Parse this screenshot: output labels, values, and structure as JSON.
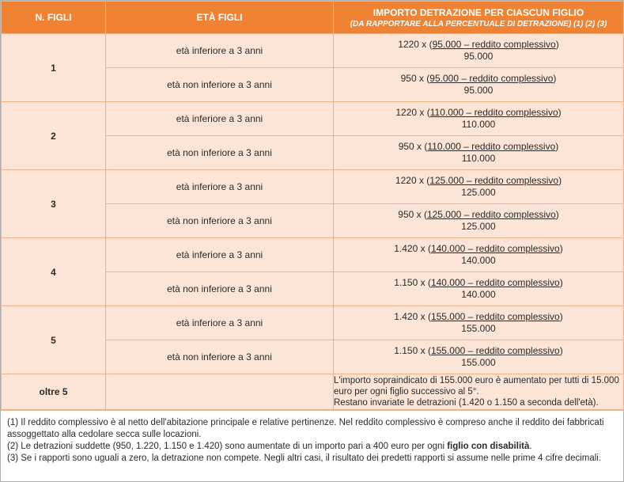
{
  "header": {
    "col1": "N. FIGLI",
    "col2": "ETÀ FIGLI",
    "col3_title": "IMPORTO DETRAZIONE PER CIASCUN FIGLIO",
    "col3_sub": "(DA RAPPORTARE ALLA PERCENTUALE DI DETRAZIONE) (1) (2) (3)"
  },
  "rows": [
    {
      "n": "1",
      "a": {
        "eta": "età inferiore a 3 anni",
        "pre": "1220 x (",
        "num": "95.000 – reddito complessivo",
        "post": ")",
        "den": "95.000"
      },
      "b": {
        "eta": "età non inferiore a 3 anni",
        "pre": "950 x (",
        "num": "95.000 – reddito complessivo",
        "post": ")",
        "den": "95.000"
      }
    },
    {
      "n": "2",
      "a": {
        "eta": "età inferiore a 3 anni",
        "pre": "1220 x (",
        "num": "110.000 – reddito complessivo",
        "post": ")",
        "den": "110.000"
      },
      "b": {
        "eta": "età non inferiore a 3 anni",
        "pre": "950 x (",
        "num": "110.000 – reddito complessivo",
        "post": ")",
        "den": "110.000"
      }
    },
    {
      "n": "3",
      "a": {
        "eta": "età inferiore a 3 anni",
        "pre": "1220 x (",
        "num": "125.000 – reddito complessivo",
        "post": ")",
        "den": "125.000"
      },
      "b": {
        "eta": "età non inferiore a 3 anni",
        "pre": "950 x (",
        "num": "125.000 – reddito complessivo",
        "post": ")",
        "den": "125.000"
      }
    },
    {
      "n": "4",
      "a": {
        "eta": "età inferiore a 3 anni",
        "pre": "1.420 x (",
        "num": "140.000 – reddito complessivo",
        "post": ")",
        "den": "140.000"
      },
      "b": {
        "eta": "età non inferiore a 3 anni",
        "pre": "1.150 x (",
        "num": "140.000 – reddito complessivo",
        "post": ")",
        "den": "140.000"
      }
    },
    {
      "n": "5",
      "a": {
        "eta": "età inferiore a 3 anni",
        "pre": "1.420 x (",
        "num": "155.000 – reddito complessivo",
        "post": ")",
        "den": "155.000"
      },
      "b": {
        "eta": "età non inferiore a 3 anni",
        "pre": "1.150 x (",
        "num": "155.000 – reddito complessivo",
        "post": ")",
        "den": "155.000"
      }
    }
  ],
  "oltre": {
    "n": "oltre 5",
    "line1": "L'importo sopraindicato di 155.000 euro è aumentato per tutti di 15.000 euro per ogni figlio successivo al 5°.",
    "line2": "Restano invariate le detrazioni (1.420 o 1.150 a seconda dell'età)."
  },
  "footnotes": {
    "n1": "(1) Il reddito complessivo è al netto dell'abitazione principale e relative pertinenze. Nel reddito complessivo è compreso anche il reddito dei fabbricati assoggettato alla cedolare secca sulle locazioni.",
    "n2_pre": "(2) Le detrazioni suddette (950, 1.220, 1.150 e 1.420) sono aumentate di un importo pari a 400 euro per ogni ",
    "n2_bold": "figlio con disabilità",
    "n2_post": ".",
    "n3": "(3) Se i rapporti sono uguali a zero, la detrazione non compete. Negli altri casi, il risultato dei predetti rapporti si assume nelle prime 4 cifre decimali."
  },
  "colors": {
    "header_bg": "#f08233",
    "cell_bg": "#fce4d6",
    "border": "#f4b183"
  }
}
